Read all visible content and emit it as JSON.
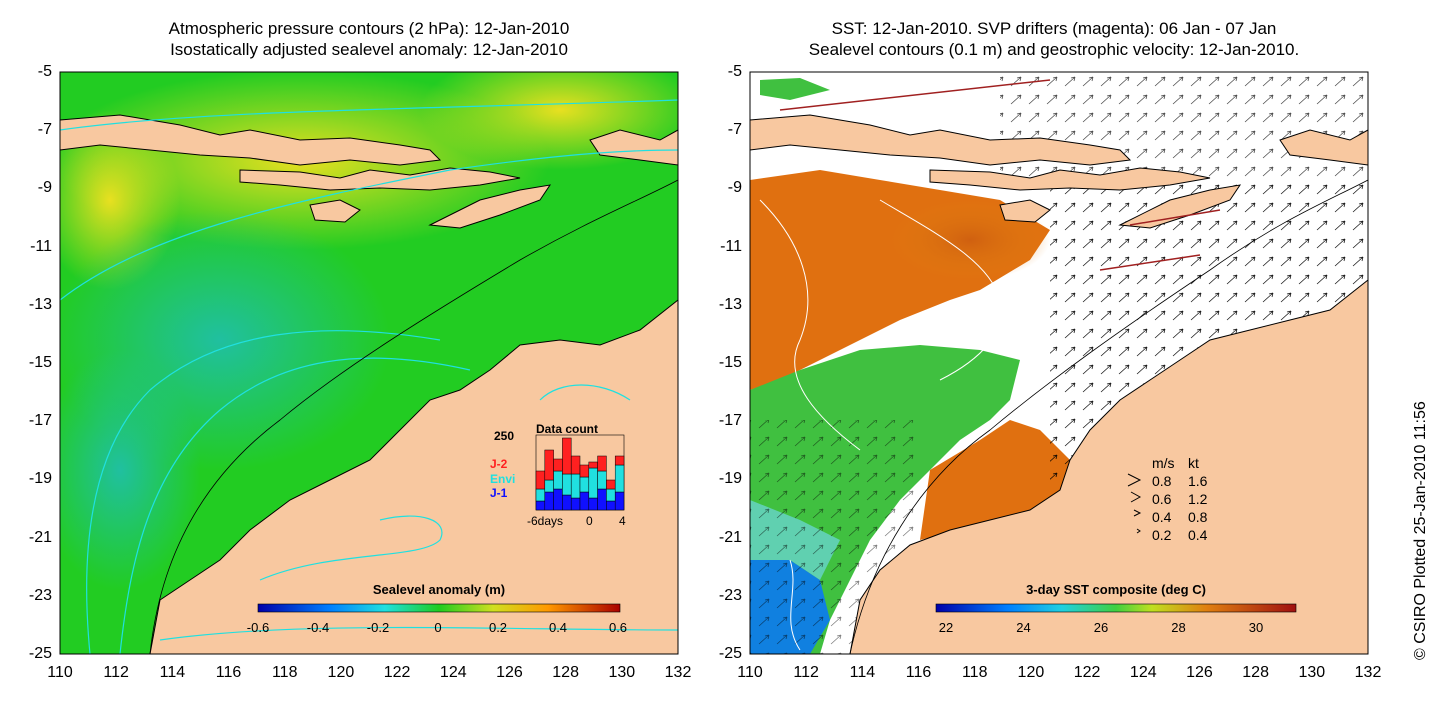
{
  "left_panel": {
    "title_line1": "Atmospheric pressure contours (2 hPa): 12-Jan-2010",
    "title_line2": "Isostatically adjusted sealevel anomaly: 12-Jan-2010",
    "colorbar_label": "Sealevel anomaly (m)",
    "colorbar_ticks": [
      "-0.6",
      "-0.4",
      "-0.2",
      "0",
      "0.2",
      "0.4",
      "0.6"
    ],
    "inset": {
      "title": "Data count",
      "y_top": "250",
      "legend": [
        {
          "label": "J-2",
          "color": "#ff2020"
        },
        {
          "label": "Envi",
          "color": "#20e0e0"
        },
        {
          "label": "J-1",
          "color": "#1010ff"
        }
      ],
      "x_ticks": [
        "-6days",
        "0",
        "4"
      ],
      "bars": [
        {
          "j1": 30,
          "envi": 40,
          "j2": 60
        },
        {
          "j1": 60,
          "envi": 40,
          "j2": 100
        },
        {
          "j1": 70,
          "envi": 60,
          "j2": 40
        },
        {
          "j1": 50,
          "envi": 70,
          "j2": 120
        },
        {
          "j1": 40,
          "envi": 80,
          "j2": 60
        },
        {
          "j1": 60,
          "envi": 50,
          "j2": 40
        },
        {
          "j1": 40,
          "envi": 100,
          "j2": 20
        },
        {
          "j1": 70,
          "envi": 60,
          "j2": 50
        },
        {
          "j1": 30,
          "envi": 40,
          "j2": 30
        },
        {
          "j1": 60,
          "envi": 90,
          "j2": 30
        }
      ]
    }
  },
  "right_panel": {
    "title_line1": "SST: 12-Jan-2010. SVP drifters (magenta): 06 Jan - 07 Jan",
    "title_line2": "Sealevel contours (0.1 m) and geostrophic velocity: 12-Jan-2010.",
    "colorbar_label": "3-day SST composite (deg C)",
    "colorbar_ticks": [
      "22",
      "24",
      "26",
      "28",
      "30"
    ],
    "velocity_legend": {
      "header_ms": "m/s",
      "header_kt": "kt",
      "rows": [
        {
          "ms": "0.8",
          "kt": "1.6"
        },
        {
          "ms": "0.6",
          "kt": "1.2"
        },
        {
          "ms": "0.4",
          "kt": "0.8"
        },
        {
          "ms": "0.2",
          "kt": "0.4"
        }
      ]
    }
  },
  "axes": {
    "x_ticks": [
      "110",
      "112",
      "114",
      "116",
      "118",
      "120",
      "122",
      "124",
      "126",
      "128",
      "130",
      "132"
    ],
    "y_ticks": [
      "-5",
      "-7",
      "-9",
      "-11",
      "-13",
      "-15",
      "-17",
      "-19",
      "-21",
      "-23",
      "-25"
    ]
  },
  "copyright": "© CSIRO Plotted 25-Jan-2010 11:56",
  "colors": {
    "land": "#f8c8a0",
    "sea_green": "#22cc22",
    "sea_yellow": "#ccdd22",
    "sst_orange": "#e07010",
    "sst_red": "#c03010"
  }
}
